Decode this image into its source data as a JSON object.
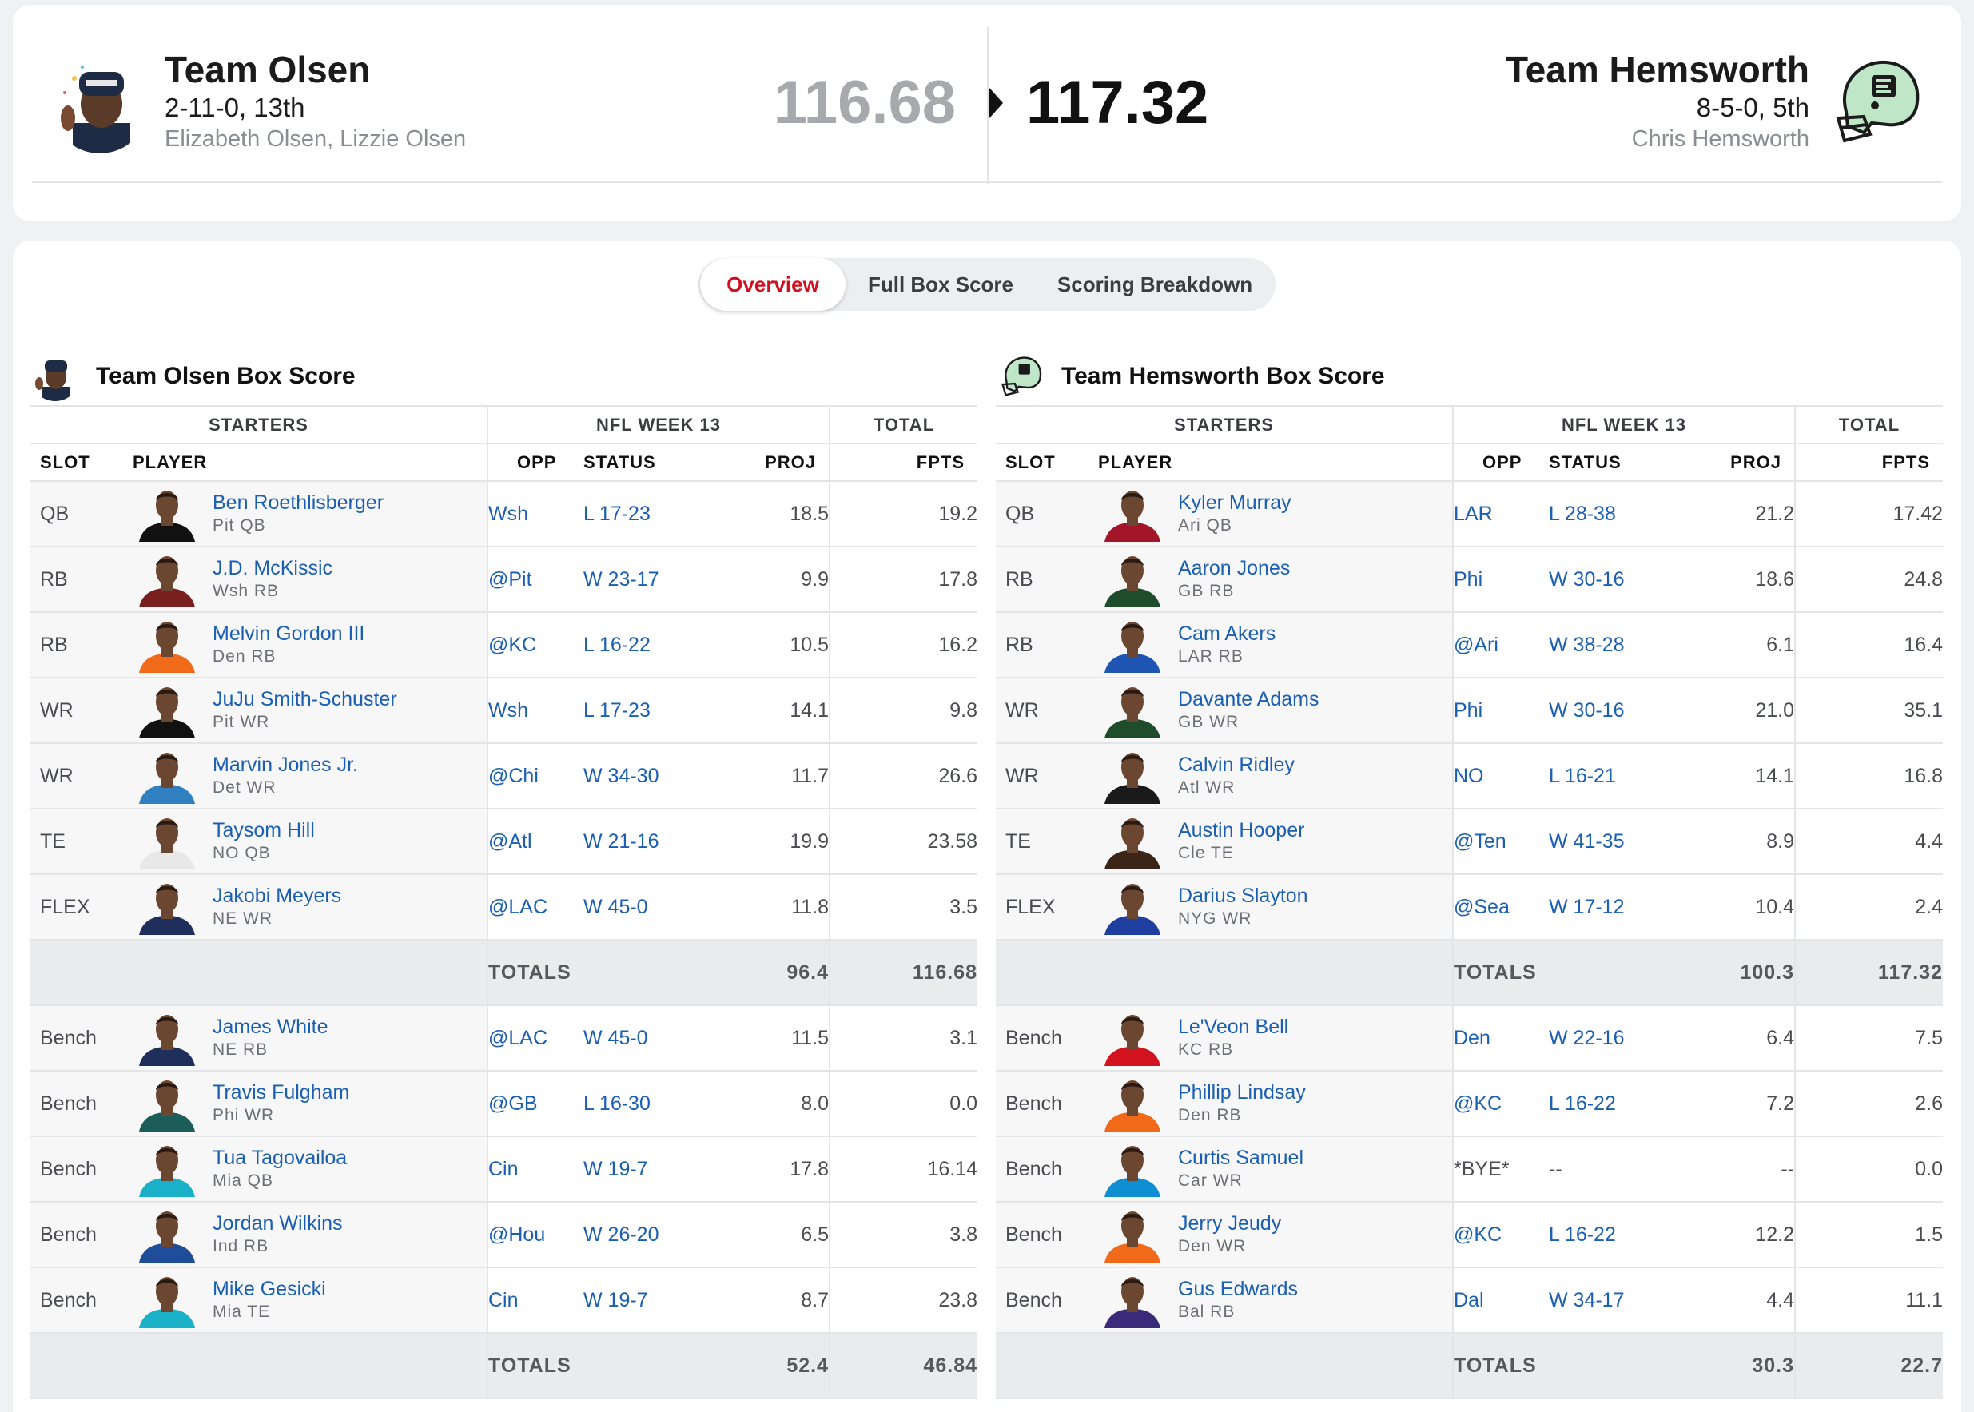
{
  "matchup": {
    "left": {
      "name": "Team Olsen",
      "record": "2-11-0, 13th",
      "owners": "Elizabeth Olsen, Lizzie Olsen",
      "score": "116.68"
    },
    "right": {
      "name": "Team Hemsworth",
      "record": "8-5-0, 5th",
      "owners": "Chris Hemsworth",
      "score": "117.32"
    }
  },
  "tabs": [
    "Overview",
    "Full Box Score",
    "Scoring Breakdown"
  ],
  "headers": {
    "starters": "STARTERS",
    "week": "NFL WEEK 13",
    "total": "TOTAL",
    "slot": "SLOT",
    "player": "PLAYER",
    "opp": "OPP",
    "status": "STATUS",
    "proj": "PROJ",
    "fpts": "FPTS",
    "totals": "TOTALS"
  },
  "colors": {
    "link": "#1a5fb4",
    "active_tab": "#d10f1e",
    "helmet": "#bfe6c7"
  },
  "box_left": {
    "title": "Team Olsen Box Score",
    "starters": [
      {
        "slot": "QB",
        "name": "Ben Roethlisberger",
        "meta": "Pit  QB",
        "opp": "Wsh",
        "status": "L 17-23",
        "proj": "18.5",
        "fpts": "19.2",
        "jersey": "#111111"
      },
      {
        "slot": "RB",
        "name": "J.D. McKissic",
        "meta": "Wsh  RB",
        "opp": "@Pit",
        "status": "W 23-17",
        "proj": "9.9",
        "fpts": "17.8",
        "jersey": "#7a1f1f"
      },
      {
        "slot": "RB",
        "name": "Melvin Gordon III",
        "meta": "Den  RB",
        "opp": "@KC",
        "status": "L 16-22",
        "proj": "10.5",
        "fpts": "16.2",
        "jersey": "#f06a1a"
      },
      {
        "slot": "WR",
        "name": "JuJu Smith-Schuster",
        "meta": "Pit  WR",
        "opp": "Wsh",
        "status": "L 17-23",
        "proj": "14.1",
        "fpts": "9.8",
        "jersey": "#111111"
      },
      {
        "slot": "WR",
        "name": "Marvin Jones Jr.",
        "meta": "Det  WR",
        "opp": "@Chi",
        "status": "W 34-30",
        "proj": "11.7",
        "fpts": "26.6",
        "jersey": "#2f7fc1"
      },
      {
        "slot": "TE",
        "name": "Taysom Hill",
        "meta": "NO  QB",
        "opp": "@Atl",
        "status": "W 21-16",
        "proj": "19.9",
        "fpts": "23.58",
        "jersey": "#e8e8e8"
      },
      {
        "slot": "FLEX",
        "name": "Jakobi Meyers",
        "meta": "NE  WR",
        "opp": "@LAC",
        "status": "W 45-0",
        "proj": "11.8",
        "fpts": "3.5",
        "jersey": "#1d2f5a"
      }
    ],
    "starters_totals": {
      "proj": "96.4",
      "fpts": "116.68"
    },
    "bench": [
      {
        "slot": "Bench",
        "name": "James White",
        "meta": "NE  RB",
        "opp": "@LAC",
        "status": "W 45-0",
        "proj": "11.5",
        "fpts": "3.1",
        "jersey": "#1d2f5a"
      },
      {
        "slot": "Bench",
        "name": "Travis Fulgham",
        "meta": "Phi  WR",
        "opp": "@GB",
        "status": "L 16-30",
        "proj": "8.0",
        "fpts": "0.0",
        "jersey": "#1c5d5a"
      },
      {
        "slot": "Bench",
        "name": "Tua Tagovailoa",
        "meta": "Mia  QB",
        "opp": "Cin",
        "status": "W 19-7",
        "proj": "17.8",
        "fpts": "16.14",
        "jersey": "#1ab0c8"
      },
      {
        "slot": "Bench",
        "name": "Jordan Wilkins",
        "meta": "Ind  RB",
        "opp": "@Hou",
        "status": "W 26-20",
        "proj": "6.5",
        "fpts": "3.8",
        "jersey": "#1f4d9a"
      },
      {
        "slot": "Bench",
        "name": "Mike Gesicki",
        "meta": "Mia  TE",
        "opp": "Cin",
        "status": "W 19-7",
        "proj": "8.7",
        "fpts": "23.8",
        "jersey": "#1ab0c8"
      }
    ],
    "bench_totals": {
      "proj": "52.4",
      "fpts": "46.84"
    }
  },
  "box_right": {
    "title": "Team Hemsworth Box Score",
    "starters": [
      {
        "slot": "QB",
        "name": "Kyler Murray",
        "meta": "Ari  QB",
        "opp": "LAR",
        "status": "L 28-38",
        "proj": "21.2",
        "fpts": "17.42",
        "jersey": "#a3162a"
      },
      {
        "slot": "RB",
        "name": "Aaron Jones",
        "meta": "GB  RB",
        "opp": "Phi",
        "status": "W 30-16",
        "proj": "18.6",
        "fpts": "24.8",
        "jersey": "#1f4d2b"
      },
      {
        "slot": "RB",
        "name": "Cam Akers",
        "meta": "LAR  RB",
        "opp": "@Ari",
        "status": "W 38-28",
        "proj": "6.1",
        "fpts": "16.4",
        "jersey": "#1f55b3"
      },
      {
        "slot": "WR",
        "name": "Davante Adams",
        "meta": "GB  WR",
        "opp": "Phi",
        "status": "W 30-16",
        "proj": "21.0",
        "fpts": "35.1",
        "jersey": "#1f4d2b"
      },
      {
        "slot": "WR",
        "name": "Calvin Ridley",
        "meta": "Atl  WR",
        "opp": "NO",
        "status": "L 16-21",
        "proj": "14.1",
        "fpts": "16.8",
        "jersey": "#1a1a1a"
      },
      {
        "slot": "TE",
        "name": "Austin Hooper",
        "meta": "Cle  TE",
        "opp": "@Ten",
        "status": "W 41-35",
        "proj": "8.9",
        "fpts": "4.4",
        "jersey": "#3a2516"
      },
      {
        "slot": "FLEX",
        "name": "Darius Slayton",
        "meta": "NYG  WR",
        "opp": "@Sea",
        "status": "W 17-12",
        "proj": "10.4",
        "fpts": "2.4",
        "jersey": "#1f3fa0"
      }
    ],
    "starters_totals": {
      "proj": "100.3",
      "fpts": "117.32"
    },
    "bench": [
      {
        "slot": "Bench",
        "name": "Le'Veon Bell",
        "meta": "KC  RB",
        "opp": "Den",
        "status": "W 22-16",
        "proj": "6.4",
        "fpts": "7.5",
        "jersey": "#d3121f"
      },
      {
        "slot": "Bench",
        "name": "Phillip Lindsay",
        "meta": "Den  RB",
        "opp": "@KC",
        "status": "L 16-22",
        "proj": "7.2",
        "fpts": "2.6",
        "jersey": "#f06a1a"
      },
      {
        "slot": "Bench",
        "name": "Curtis Samuel",
        "meta": "Car  WR",
        "opp": "*BYE*",
        "status": "--",
        "proj": "--",
        "fpts": "0.0",
        "jersey": "#0f8fd1"
      },
      {
        "slot": "Bench",
        "name": "Jerry Jeudy",
        "meta": "Den  WR",
        "opp": "@KC",
        "status": "L 16-22",
        "proj": "12.2",
        "fpts": "1.5",
        "jersey": "#f06a1a"
      },
      {
        "slot": "Bench",
        "name": "Gus Edwards",
        "meta": "Bal  RB",
        "opp": "Dal",
        "status": "W 34-17",
        "proj": "4.4",
        "fpts": "11.1",
        "jersey": "#3a2a7a"
      }
    ],
    "bench_totals": {
      "proj": "30.3",
      "fpts": "22.7"
    }
  }
}
